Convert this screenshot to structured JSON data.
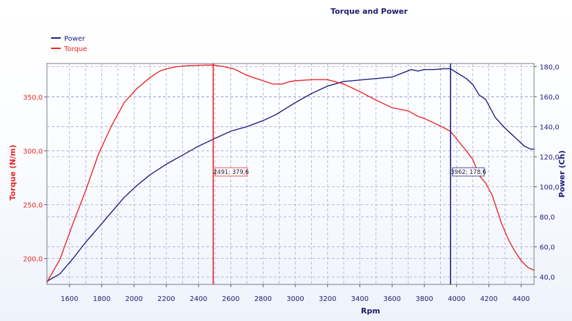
{
  "chart_data": {
    "type": "line",
    "title": "Torque and Power",
    "xlabel": "Rpm",
    "xlim": [
      1460,
      4480
    ],
    "x_ticks": [
      1600,
      1800,
      2000,
      2200,
      2400,
      2600,
      2800,
      3000,
      3200,
      3400,
      3600,
      3800,
      4000,
      4200,
      4400
    ],
    "y_left": {
      "label": "Torque (N/m)",
      "range": [
        176,
        381
      ],
      "ticks": [
        200,
        250,
        300,
        350
      ],
      "tick_labels": [
        "200,0",
        "250,0",
        "300,0",
        "350,0"
      ],
      "color": "#ee2222"
    },
    "y_right": {
      "label": "Power (Ch)",
      "range": [
        35,
        182
      ],
      "ticks": [
        40,
        60,
        80,
        100,
        120,
        140,
        160,
        180
      ],
      "tick_labels": [
        "40,0",
        "60,0",
        "80,0",
        "100,0",
        "120,0",
        "140,0",
        "160,0",
        "180,0"
      ],
      "color": "#1a1a80"
    },
    "grid": true,
    "legend_position": "top-left",
    "series": [
      {
        "name": "Power",
        "axis": "right",
        "color": "#1a1a80",
        "x": [
          1460,
          1540,
          1620,
          1700,
          1780,
          1860,
          1940,
          2020,
          2100,
          2200,
          2300,
          2400,
          2500,
          2600,
          2700,
          2800,
          2880,
          2940,
          3000,
          3100,
          3200,
          3300,
          3400,
          3500,
          3600,
          3720,
          3760,
          3800,
          3860,
          3920,
          3960,
          4000,
          4060,
          4100,
          4140,
          4180,
          4240,
          4300,
          4340,
          4380,
          4420,
          4460,
          4480
        ],
        "y": [
          37,
          42,
          52,
          63,
          73,
          83,
          93,
          101,
          108,
          115,
          121,
          127,
          132,
          137,
          140,
          144,
          148,
          152,
          156,
          162,
          167,
          170,
          171,
          172,
          173,
          178,
          177,
          178,
          178,
          178.5,
          178.6,
          176,
          172,
          168,
          161,
          158,
          146,
          139,
          135,
          131,
          127,
          125,
          125
        ]
      },
      {
        "name": "Torque",
        "axis": "left",
        "color": "#ee2222",
        "x": [
          1460,
          1540,
          1620,
          1700,
          1780,
          1860,
          1940,
          2020,
          2100,
          2160,
          2200,
          2260,
          2340,
          2440,
          2491,
          2560,
          2620,
          2700,
          2760,
          2800,
          2860,
          2920,
          2960,
          3000,
          3100,
          3200,
          3300,
          3400,
          3500,
          3600,
          3700,
          3760,
          3800,
          3900,
          3962,
          4000,
          4060,
          4100,
          4140,
          4180,
          4220,
          4280,
          4320,
          4360,
          4400,
          4440,
          4480
        ],
        "y": [
          178,
          199,
          232,
          263,
          297,
          323,
          345,
          358,
          368,
          374,
          376,
          378,
          379,
          379.5,
          379.6,
          378,
          376,
          370,
          367,
          365,
          362,
          362,
          364,
          365,
          366,
          366,
          362,
          355,
          347,
          340,
          337,
          332,
          330,
          323,
          318,
          311,
          300,
          292,
          277,
          270,
          259,
          232,
          218,
          207,
          198,
          192,
          189
        ]
      }
    ],
    "markers": [
      {
        "x": 2491,
        "label": "2491; 379,6",
        "color": "#ee2222"
      },
      {
        "x": 3962,
        "label": "3962; 178,6",
        "color": "#1a1a80"
      }
    ]
  }
}
